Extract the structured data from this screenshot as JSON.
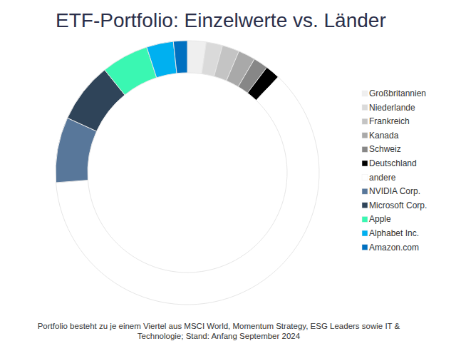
{
  "chart_data": {
    "type": "donut",
    "title": "ETF-Portfolio: Einzelwerte vs. Länder",
    "annotations": [
      "Portfolio besteht zu je einem Viertel aus MSCI World, Momentum Strategy, ESG Leaders sowie IT & Technologie; Stand: Anfang September 2024"
    ],
    "categories": [
      "Großbritannien",
      "Niederlande",
      "Frankreich",
      "Kanada",
      "Schweiz",
      "Deutschland",
      "andere",
      "NVIDIA Corp.",
      "Microsoft Corp.",
      "Apple",
      "Alphabet Inc.",
      "Amazon.com"
    ],
    "values": [
      2.3,
      2.0,
      2.1,
      2.1,
      1.8,
      1.8,
      61.7,
      8.0,
      7.4,
      5.8,
      3.3,
      1.7
    ],
    "colors": [
      "#efefef",
      "#dadada",
      "#c4c4c4",
      "#a9a9a9",
      "#878787",
      "#000000",
      "#ffffff",
      "#58779a",
      "#2f4459",
      "#3af7b2",
      "#00b0f0",
      "#0070c0"
    ],
    "legend": "right"
  }
}
